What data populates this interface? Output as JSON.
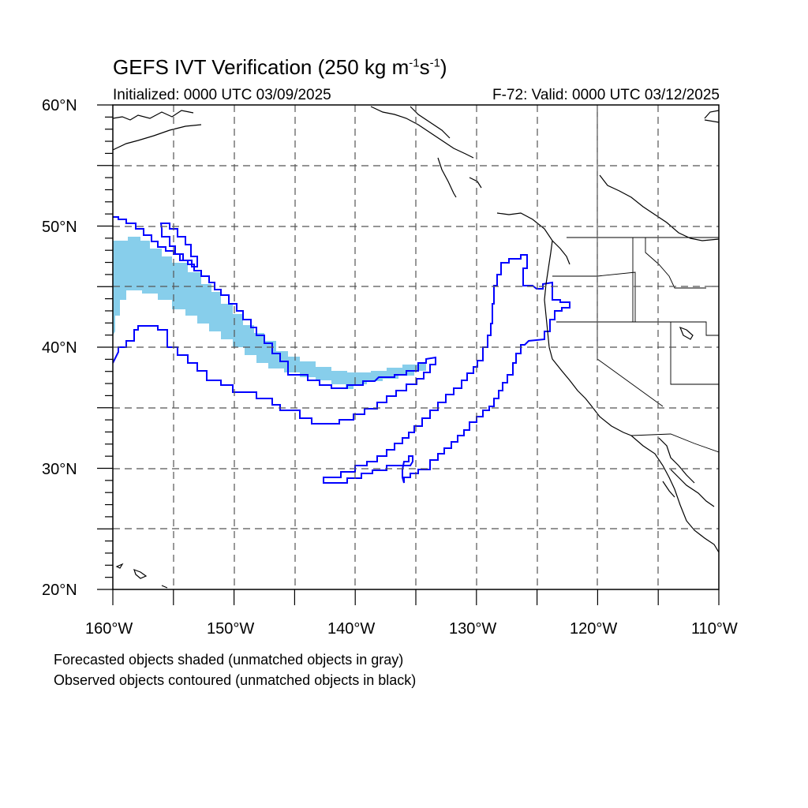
{
  "title": {
    "prefix": "GEFS IVT Verification (250 kg m",
    "exp1": "-1",
    "mid": "s",
    "exp2": "-1",
    "suffix": ")"
  },
  "initialized": "Initialized: 0000 UTC 03/09/2025",
  "valid": "F-72: Valid: 0000 UTC 03/12/2025",
  "footer": {
    "line1": "Forecasted objects shaded (unmatched objects in gray)",
    "line2": "Observed objects contoured (unmatched objects in black)"
  },
  "map": {
    "lon_range": [
      -160,
      -110
    ],
    "lat_range": [
      20,
      60
    ],
    "lon_ticks": [
      "160°W",
      "150°W",
      "140°W",
      "130°W",
      "120°W",
      "110°W"
    ],
    "lat_ticks": [
      "60°N",
      "50°N",
      "40°N",
      "30°N",
      "20°N"
    ],
    "grid": "dashed every 5 degrees",
    "colors": {
      "forecast_fill": "#87ceeb",
      "observed_contour": "#0000ff",
      "coastline": "#000000",
      "grid": "#555555"
    }
  }
}
